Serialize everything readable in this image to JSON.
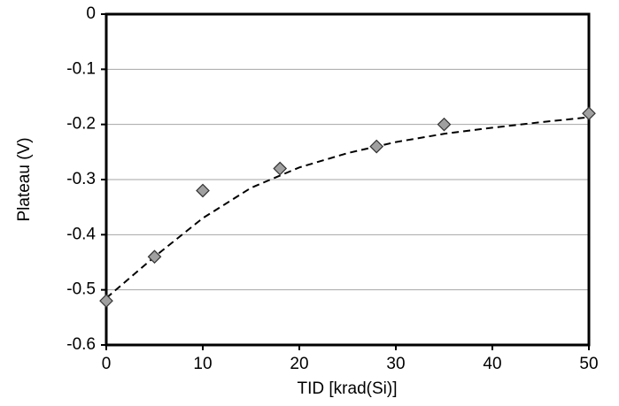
{
  "chart_data": {
    "type": "scatter",
    "xlabel": "TID [krad(Si)]",
    "ylabel": "Plateau (V)",
    "series": [
      {
        "color": "#a0a0a0",
        "marker": "diamond",
        "x": [
          0,
          5,
          10,
          18,
          28,
          35,
          50
        ],
        "values": [
          -0.52,
          -0.44,
          -0.32,
          -0.28,
          -0.24,
          -0.2,
          -0.18
        ]
      },
      {
        "color": "#000000",
        "line": "dashed",
        "x": [
          0,
          5,
          10,
          15,
          20,
          25,
          30,
          35,
          40,
          45,
          50
        ],
        "values": [
          -0.515,
          -0.44,
          -0.37,
          -0.315,
          -0.278,
          -0.252,
          -0.232,
          -0.217,
          -0.206,
          -0.196,
          -0.187
        ]
      }
    ],
    "xlim": [
      0,
      50
    ],
    "xticks": [
      0,
      10,
      20,
      30,
      40,
      50
    ],
    "ylim": [
      -0.6,
      0
    ],
    "yticks": [
      0,
      -0.1,
      -0.2,
      -0.3,
      -0.4,
      -0.5,
      -0.6
    ],
    "grid": true
  }
}
